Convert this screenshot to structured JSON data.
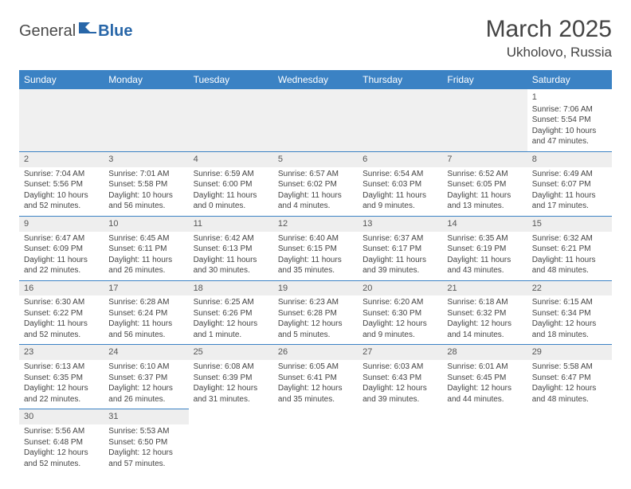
{
  "logo": {
    "part1": "General",
    "part2": "Blue"
  },
  "title": "March 2025",
  "location": "Ukholovo, Russia",
  "colors": {
    "header_bg": "#3b82c4",
    "header_text": "#ffffff",
    "cell_border": "#3b82c4",
    "daynum_bg": "#eeeeee",
    "text": "#444444",
    "logo_blue": "#2866a8"
  },
  "weekdays": [
    "Sunday",
    "Monday",
    "Tuesday",
    "Wednesday",
    "Thursday",
    "Friday",
    "Saturday"
  ],
  "weeks": [
    [
      null,
      null,
      null,
      null,
      null,
      null,
      {
        "n": "1",
        "sr": "Sunrise: 7:06 AM",
        "ss": "Sunset: 5:54 PM",
        "dl": "Daylight: 10 hours and 47 minutes."
      }
    ],
    [
      {
        "n": "2",
        "sr": "Sunrise: 7:04 AM",
        "ss": "Sunset: 5:56 PM",
        "dl": "Daylight: 10 hours and 52 minutes."
      },
      {
        "n": "3",
        "sr": "Sunrise: 7:01 AM",
        "ss": "Sunset: 5:58 PM",
        "dl": "Daylight: 10 hours and 56 minutes."
      },
      {
        "n": "4",
        "sr": "Sunrise: 6:59 AM",
        "ss": "Sunset: 6:00 PM",
        "dl": "Daylight: 11 hours and 0 minutes."
      },
      {
        "n": "5",
        "sr": "Sunrise: 6:57 AM",
        "ss": "Sunset: 6:02 PM",
        "dl": "Daylight: 11 hours and 4 minutes."
      },
      {
        "n": "6",
        "sr": "Sunrise: 6:54 AM",
        "ss": "Sunset: 6:03 PM",
        "dl": "Daylight: 11 hours and 9 minutes."
      },
      {
        "n": "7",
        "sr": "Sunrise: 6:52 AM",
        "ss": "Sunset: 6:05 PM",
        "dl": "Daylight: 11 hours and 13 minutes."
      },
      {
        "n": "8",
        "sr": "Sunrise: 6:49 AM",
        "ss": "Sunset: 6:07 PM",
        "dl": "Daylight: 11 hours and 17 minutes."
      }
    ],
    [
      {
        "n": "9",
        "sr": "Sunrise: 6:47 AM",
        "ss": "Sunset: 6:09 PM",
        "dl": "Daylight: 11 hours and 22 minutes."
      },
      {
        "n": "10",
        "sr": "Sunrise: 6:45 AM",
        "ss": "Sunset: 6:11 PM",
        "dl": "Daylight: 11 hours and 26 minutes."
      },
      {
        "n": "11",
        "sr": "Sunrise: 6:42 AM",
        "ss": "Sunset: 6:13 PM",
        "dl": "Daylight: 11 hours and 30 minutes."
      },
      {
        "n": "12",
        "sr": "Sunrise: 6:40 AM",
        "ss": "Sunset: 6:15 PM",
        "dl": "Daylight: 11 hours and 35 minutes."
      },
      {
        "n": "13",
        "sr": "Sunrise: 6:37 AM",
        "ss": "Sunset: 6:17 PM",
        "dl": "Daylight: 11 hours and 39 minutes."
      },
      {
        "n": "14",
        "sr": "Sunrise: 6:35 AM",
        "ss": "Sunset: 6:19 PM",
        "dl": "Daylight: 11 hours and 43 minutes."
      },
      {
        "n": "15",
        "sr": "Sunrise: 6:32 AM",
        "ss": "Sunset: 6:21 PM",
        "dl": "Daylight: 11 hours and 48 minutes."
      }
    ],
    [
      {
        "n": "16",
        "sr": "Sunrise: 6:30 AM",
        "ss": "Sunset: 6:22 PM",
        "dl": "Daylight: 11 hours and 52 minutes."
      },
      {
        "n": "17",
        "sr": "Sunrise: 6:28 AM",
        "ss": "Sunset: 6:24 PM",
        "dl": "Daylight: 11 hours and 56 minutes."
      },
      {
        "n": "18",
        "sr": "Sunrise: 6:25 AM",
        "ss": "Sunset: 6:26 PM",
        "dl": "Daylight: 12 hours and 1 minute."
      },
      {
        "n": "19",
        "sr": "Sunrise: 6:23 AM",
        "ss": "Sunset: 6:28 PM",
        "dl": "Daylight: 12 hours and 5 minutes."
      },
      {
        "n": "20",
        "sr": "Sunrise: 6:20 AM",
        "ss": "Sunset: 6:30 PM",
        "dl": "Daylight: 12 hours and 9 minutes."
      },
      {
        "n": "21",
        "sr": "Sunrise: 6:18 AM",
        "ss": "Sunset: 6:32 PM",
        "dl": "Daylight: 12 hours and 14 minutes."
      },
      {
        "n": "22",
        "sr": "Sunrise: 6:15 AM",
        "ss": "Sunset: 6:34 PM",
        "dl": "Daylight: 12 hours and 18 minutes."
      }
    ],
    [
      {
        "n": "23",
        "sr": "Sunrise: 6:13 AM",
        "ss": "Sunset: 6:35 PM",
        "dl": "Daylight: 12 hours and 22 minutes."
      },
      {
        "n": "24",
        "sr": "Sunrise: 6:10 AM",
        "ss": "Sunset: 6:37 PM",
        "dl": "Daylight: 12 hours and 26 minutes."
      },
      {
        "n": "25",
        "sr": "Sunrise: 6:08 AM",
        "ss": "Sunset: 6:39 PM",
        "dl": "Daylight: 12 hours and 31 minutes."
      },
      {
        "n": "26",
        "sr": "Sunrise: 6:05 AM",
        "ss": "Sunset: 6:41 PM",
        "dl": "Daylight: 12 hours and 35 minutes."
      },
      {
        "n": "27",
        "sr": "Sunrise: 6:03 AM",
        "ss": "Sunset: 6:43 PM",
        "dl": "Daylight: 12 hours and 39 minutes."
      },
      {
        "n": "28",
        "sr": "Sunrise: 6:01 AM",
        "ss": "Sunset: 6:45 PM",
        "dl": "Daylight: 12 hours and 44 minutes."
      },
      {
        "n": "29",
        "sr": "Sunrise: 5:58 AM",
        "ss": "Sunset: 6:47 PM",
        "dl": "Daylight: 12 hours and 48 minutes."
      }
    ],
    [
      {
        "n": "30",
        "sr": "Sunrise: 5:56 AM",
        "ss": "Sunset: 6:48 PM",
        "dl": "Daylight: 12 hours and 52 minutes."
      },
      {
        "n": "31",
        "sr": "Sunrise: 5:53 AM",
        "ss": "Sunset: 6:50 PM",
        "dl": "Daylight: 12 hours and 57 minutes."
      },
      null,
      null,
      null,
      null,
      null
    ]
  ]
}
